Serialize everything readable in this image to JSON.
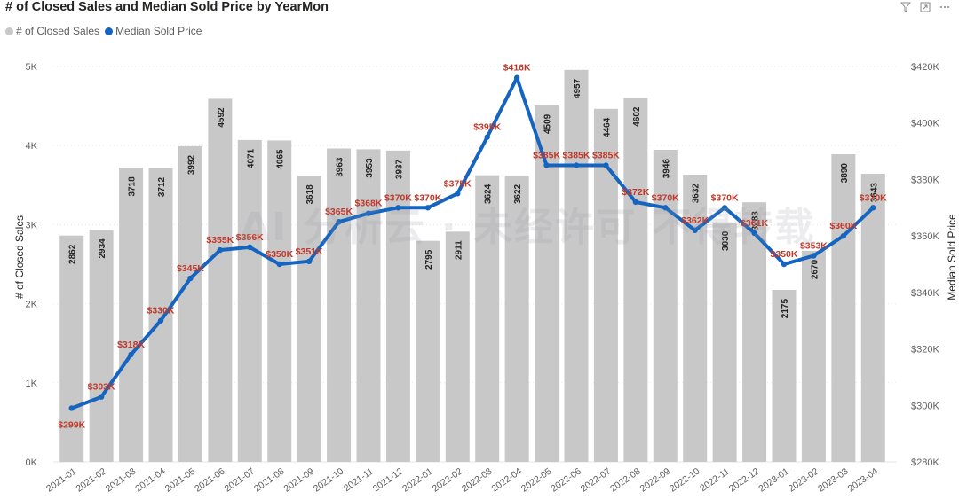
{
  "title": "# of Closed Sales and Median Sold Price by YearMon",
  "legend": {
    "items": [
      {
        "label": "# of Closed Sales",
        "color": "#c8c8c8"
      },
      {
        "label": "Median Sold Price",
        "color": "#1565c0"
      }
    ]
  },
  "toolbar": {
    "filter_icon": "filter-icon",
    "focus_icon": "focus-mode-icon",
    "more_icon": "more-options-icon"
  },
  "watermark": "AI 分析云 · 未经许可 不得转载",
  "chart_data": {
    "type": "bar+line",
    "title": "# of Closed Sales and Median Sold Price by YearMon",
    "categories": [
      "2021-01",
      "2021-02",
      "2021-03",
      "2021-04",
      "2021-05",
      "2021-06",
      "2021-07",
      "2021-08",
      "2021-09",
      "2021-10",
      "2021-11",
      "2021-12",
      "2022-01",
      "2022-02",
      "2022-03",
      "2022-04",
      "2022-05",
      "2022-06",
      "2022-07",
      "2022-08",
      "2022-09",
      "2022-10",
      "2022-11",
      "2022-12",
      "2023-01",
      "2023-02",
      "2023-03",
      "2023-04"
    ],
    "series": [
      {
        "name": "# of Closed Sales",
        "type": "bar",
        "axis": "left",
        "color": "#c8c8c8",
        "values": [
          2862,
          2934,
          3718,
          3712,
          3992,
          4592,
          4071,
          4065,
          3618,
          3963,
          3953,
          3937,
          2795,
          2911,
          3624,
          3622,
          4509,
          4957,
          4464,
          4602,
          3946,
          3632,
          3030,
          3283,
          2175,
          2670,
          3890,
          3643
        ]
      },
      {
        "name": "Median Sold Price",
        "type": "line",
        "axis": "right",
        "color": "#1565c0",
        "values": [
          299000,
          303000,
          318000,
          330000,
          345000,
          355000,
          356000,
          350000,
          351000,
          365000,
          368000,
          370000,
          370000,
          375000,
          395000,
          416000,
          385000,
          385000,
          385000,
          372000,
          370000,
          362000,
          370000,
          361000,
          350000,
          353000,
          360000,
          370000
        ],
        "labels": [
          "$299K",
          "$303K",
          "$318K",
          "$330K",
          "$345K",
          "$355K",
          "$356K",
          "$350K",
          "$351K",
          "$365K",
          "$368K",
          "$370K",
          "$370K",
          "$375K",
          "$395K",
          "$416K",
          "$385K",
          "$385K",
          "$385K",
          "$372K",
          "$370K",
          "$362K",
          "$370K",
          "$361K",
          "$350K",
          "$353K",
          "$360K",
          "$370K"
        ]
      }
    ],
    "ylabel_left": "# of Closed Sales",
    "ylabel_right": "Median Sold Price",
    "ylim_left": [
      0,
      5000
    ],
    "yticks_left": [
      "0K",
      "1K",
      "2K",
      "3K",
      "4K",
      "5K"
    ],
    "ylim_right": [
      280000,
      420000
    ],
    "yticks_right": [
      "$280K",
      "$300K",
      "$320K",
      "$340K",
      "$360K",
      "$380K",
      "$400K",
      "$420K"
    ],
    "grid": true,
    "legend_position": "top-left"
  }
}
